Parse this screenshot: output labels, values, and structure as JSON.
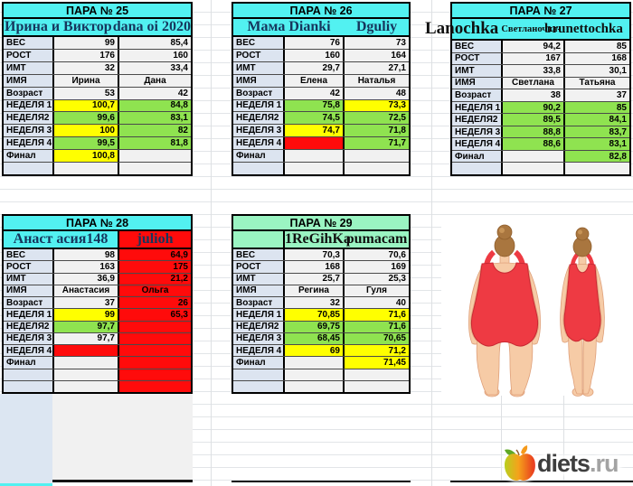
{
  "colors": {
    "cyan": "#52F1F1",
    "mint": "#9AF4C2",
    "yellow": "#FFFF00",
    "green": "#8FE350",
    "red": "#FF0B0B",
    "plain": "#F1F1F1",
    "label_bg": "#DCE4F0",
    "name_navy": "#16365D",
    "name_black": "#101010",
    "grid": "#E2E5E8"
  },
  "row_labels": [
    "ВЕС",
    "РОСТ",
    "ИМТ",
    "ИМЯ",
    "Возраст",
    "НЕДЕЛЯ 1",
    "НЕДЕЛЯ2",
    "НЕДЕЛЯ 3",
    "НЕДЕЛЯ 4",
    "Финал"
  ],
  "tables": [
    {
      "key": "t25",
      "title": "ПАРА № 25",
      "header_bg": "cyan",
      "names": {
        "type": "merged",
        "bg": "cyan",
        "left": "Ирина и Виктор",
        "right": "dana oi 2020",
        "color": "name_navy"
      },
      "rows": [
        {
          "l": "ВЕС",
          "v1": "99",
          "c1": "plain",
          "v2": "85,4",
          "c2": "plain"
        },
        {
          "l": "РОСТ",
          "v1": "176",
          "c1": "plain",
          "v2": "160",
          "c2": "plain"
        },
        {
          "l": "ИМТ",
          "v1": "32",
          "c1": "plain",
          "v2": "33,4",
          "c2": "plain"
        },
        {
          "l": "ИМЯ",
          "v1": "Ирина",
          "c1": "plain",
          "v2": "Дана",
          "c2": "plain",
          "center": true
        },
        {
          "l": "Возраст",
          "v1": "53",
          "c1": "plain",
          "v2": "42",
          "c2": "plain"
        },
        {
          "l": "НЕДЕЛЯ 1",
          "v1": "100,7",
          "c1": "yellow",
          "v2": "84,8",
          "c2": "green"
        },
        {
          "l": "НЕДЕЛЯ2",
          "v1": "99,6",
          "c1": "green",
          "v2": "83,1",
          "c2": "green"
        },
        {
          "l": "НЕДЕЛЯ 3",
          "v1": "100",
          "c1": "yellow",
          "v2": "82",
          "c2": "green"
        },
        {
          "l": "НЕДЕЛЯ 4",
          "v1": "99,5",
          "c1": "green",
          "v2": "81,8",
          "c2": "green"
        },
        {
          "l": "Финал",
          "v1": "100,8",
          "c1": "yellow",
          "v2": "",
          "c2": "plain"
        },
        {
          "l": "",
          "v1": "",
          "c1": "plain",
          "v2": "",
          "c2": "plain"
        }
      ]
    },
    {
      "key": "t26",
      "title": "ПАРА № 26",
      "header_bg": "cyan",
      "names": {
        "type": "merged",
        "bg": "cyan",
        "left": "Мама Dianki",
        "right": "Dguliy",
        "color": "name_navy"
      },
      "rows": [
        {
          "l": "ВЕС",
          "v1": "76",
          "c1": "plain",
          "v2": "73",
          "c2": "plain"
        },
        {
          "l": "РОСТ",
          "v1": "160",
          "c1": "plain",
          "v2": "164",
          "c2": "plain"
        },
        {
          "l": "ИМТ",
          "v1": "29,7",
          "c1": "plain",
          "v2": "27,1",
          "c2": "plain"
        },
        {
          "l": "ИМЯ",
          "v1": "Елена",
          "c1": "plain",
          "v2": "Наталья",
          "c2": "plain",
          "center": true
        },
        {
          "l": "Возраст",
          "v1": "42",
          "c1": "plain",
          "v2": "48",
          "c2": "plain"
        },
        {
          "l": "НЕДЕЛЯ 1",
          "v1": "75,8",
          "c1": "green",
          "v2": "73,3",
          "c2": "yellow"
        },
        {
          "l": "НЕДЕЛЯ2",
          "v1": "74,5",
          "c1": "green",
          "v2": "72,5",
          "c2": "green"
        },
        {
          "l": "НЕДЕЛЯ 3",
          "v1": "74,7",
          "c1": "yellow",
          "v2": "71,8",
          "c2": "green"
        },
        {
          "l": "НЕДЕЛЯ 4",
          "v1": "",
          "c1": "red",
          "v2": "71,7",
          "c2": "green"
        },
        {
          "l": "Финал",
          "v1": "",
          "c1": "plain",
          "v2": "",
          "c2": "plain"
        },
        {
          "l": "",
          "v1": "",
          "c1": "plain",
          "v2": "",
          "c2": "plain"
        }
      ]
    },
    {
      "key": "t27",
      "title": "ПАРА № 27",
      "header_bg": "cyan",
      "names": {
        "type": "overflow",
        "bg": "cyan",
        "left_main": "Lanochka",
        "left_sub": "Светланочка-",
        "right": "brunettochka",
        "color": "name_black"
      },
      "rows": [
        {
          "l": "ВЕС",
          "v1": "94,2",
          "c1": "plain",
          "v2": "85",
          "c2": "plain"
        },
        {
          "l": "РОСТ",
          "v1": "167",
          "c1": "plain",
          "v2": "168",
          "c2": "plain"
        },
        {
          "l": "ИМТ",
          "v1": "33,8",
          "c1": "plain",
          "v2": "30,1",
          "c2": "plain"
        },
        {
          "l": "ИМЯ",
          "v1": "Светлана",
          "c1": "plain",
          "v2": "Татьяна",
          "c2": "plain",
          "center": true
        },
        {
          "l": "Возраст",
          "v1": "38",
          "c1": "plain",
          "v2": "37",
          "c2": "plain"
        },
        {
          "l": "НЕДЕЛЯ 1",
          "v1": "90,2",
          "c1": "green",
          "v2": "85",
          "c2": "green"
        },
        {
          "l": "НЕДЕЛЯ2",
          "v1": "89,5",
          "c1": "green",
          "v2": "84,1",
          "c2": "green"
        },
        {
          "l": "НЕДЕЛЯ 3",
          "v1": "88,8",
          "c1": "green",
          "v2": "83,7",
          "c2": "green"
        },
        {
          "l": "НЕДЕЛЯ 4",
          "v1": "88,6",
          "c1": "green",
          "v2": "83,1",
          "c2": "green"
        },
        {
          "l": "Финал",
          "v1": "",
          "c1": "plain",
          "v2": "82,8",
          "c2": "green"
        },
        {
          "l": "",
          "v1": "",
          "c1": "plain",
          "v2": "",
          "c2": "plain"
        }
      ]
    },
    {
      "key": "t28",
      "title": "ПАРА № 28",
      "header_bg": "cyan",
      "names": {
        "type": "split",
        "left_bg": "cyan",
        "right_bg": "red",
        "left": "Анаст асия148",
        "right": "julioh",
        "color": "name_navy"
      },
      "rows": [
        {
          "l": "ВЕС",
          "v1": "98",
          "c1": "plain",
          "v2": "64,9",
          "c2": "red"
        },
        {
          "l": "РОСТ",
          "v1": "163",
          "c1": "plain",
          "v2": "175",
          "c2": "red"
        },
        {
          "l": "ИМТ",
          "v1": "36,9",
          "c1": "plain",
          "v2": "21,2",
          "c2": "red"
        },
        {
          "l": "ИМЯ",
          "v1": "Анастасия",
          "c1": "plain",
          "v2": "Ольга",
          "c2": "red",
          "center": true
        },
        {
          "l": "Возраст",
          "v1": "37",
          "c1": "plain",
          "v2": "26",
          "c2": "red"
        },
        {
          "l": "НЕДЕЛЯ 1",
          "v1": "99",
          "c1": "yellow",
          "v2": "65,3",
          "c2": "red"
        },
        {
          "l": "НЕДЕЛЯ2",
          "v1": "97,7",
          "c1": "green",
          "v2": "",
          "c2": "red"
        },
        {
          "l": "НЕДЕЛЯ 3",
          "v1": "97,7",
          "c1": "plain",
          "v2": "",
          "c2": "red"
        },
        {
          "l": "НЕДЕЛЯ 4",
          "v1": "",
          "c1": "red",
          "v2": "",
          "c2": "red"
        },
        {
          "l": "Финал",
          "v1": "",
          "c1": "plain",
          "v2": "",
          "c2": "red"
        },
        {
          "l": "",
          "v1": "",
          "c1": "plain",
          "v2": "",
          "c2": "red"
        },
        {
          "l": "",
          "v1": "",
          "c1": "plain",
          "v2": "",
          "c2": "red"
        }
      ]
    },
    {
      "key": "t29",
      "title": "ПАРА № 29",
      "header_bg": "mint",
      "names": {
        "type": "mint_split",
        "bg": "mint",
        "left": "1ReGihKa",
        "right": "pumacam",
        "color": "name_black"
      },
      "rows": [
        {
          "l": "ВЕС",
          "v1": "70,3",
          "c1": "plain",
          "v2": "70,6",
          "c2": "plain"
        },
        {
          "l": "РОСТ",
          "v1": "168",
          "c1": "plain",
          "v2": "169",
          "c2": "plain"
        },
        {
          "l": "ИМТ",
          "v1": "25,7",
          "c1": "plain",
          "v2": "25,3",
          "c2": "plain"
        },
        {
          "l": "ИМЯ",
          "v1": "Регина",
          "c1": "plain",
          "v2": "Гуля",
          "c2": "plain",
          "center": true
        },
        {
          "l": "Возраст",
          "v1": "32",
          "c1": "plain",
          "v2": "40",
          "c2": "plain"
        },
        {
          "l": "НЕДЕЛЯ 1",
          "v1": "70,85",
          "c1": "yellow",
          "v2": "71,6",
          "c2": "yellow"
        },
        {
          "l": "НЕДЕЛЯ2",
          "v1": "69,75",
          "c1": "green",
          "v2": "71,6",
          "c2": "green"
        },
        {
          "l": "НЕДЕЛЯ 3",
          "v1": "68,45",
          "c1": "green",
          "v2": "70,65",
          "c2": "green"
        },
        {
          "l": "НЕДЕЛЯ 4",
          "v1": "69",
          "c1": "yellow",
          "v2": "71,2",
          "c2": "yellow"
        },
        {
          "l": "Финал",
          "v1": "",
          "c1": "plain",
          "v2": "71,45",
          "c2": "yellow"
        },
        {
          "l": "",
          "v1": "",
          "c1": "plain",
          "v2": "",
          "c2": "plain"
        },
        {
          "l": "",
          "v1": "",
          "c1": "plain",
          "v2": "",
          "c2": "plain"
        }
      ]
    }
  ],
  "illustration": {
    "label": "before-after weight-loss figures",
    "skin": "#F6CBA6",
    "skin_line": "#DFA07A",
    "suit": "#EE3A43",
    "suit_line": "#C92933",
    "hair": "#A9763F",
    "bun_highlight": "#C79457"
  },
  "logo": {
    "brand": "diets",
    "tld": ".ru"
  }
}
